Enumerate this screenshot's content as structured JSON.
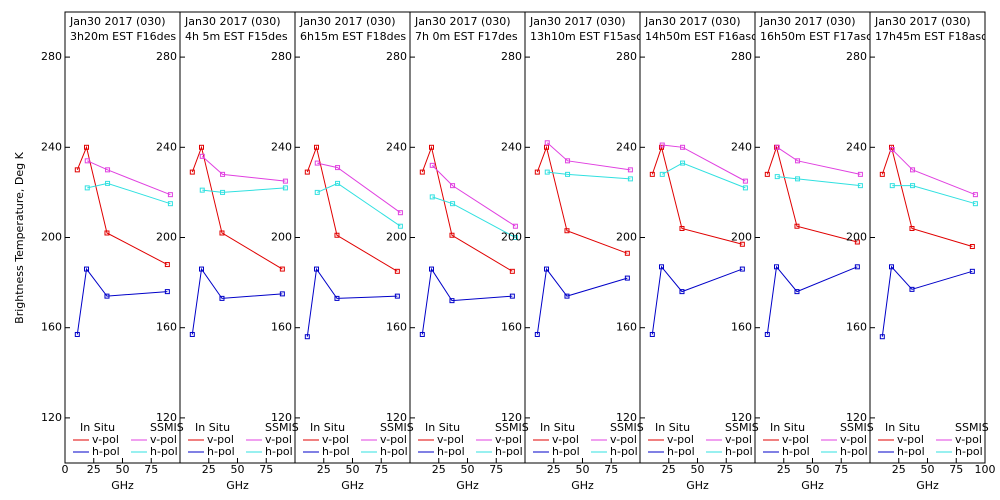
{
  "chart_data": [
    {
      "type": "line",
      "title": "Jan30 2017 (030)",
      "subtitle": "3h20m EST F16des",
      "ylabel": "Brightness Temperature, Deg K",
      "xlabel": "GHz",
      "xlim": [
        0,
        100
      ],
      "xticks": [
        0,
        25,
        50,
        75
      ],
      "ylim": [
        100,
        300
      ],
      "yticks": [
        120,
        160,
        200,
        240,
        280
      ],
      "legend_groups": [
        "In Situ",
        "SSMIS"
      ],
      "series": [
        {
          "name": "v-pol",
          "color": "#e00000",
          "x": [
            10.7,
            18.7,
            36.5,
            89
          ],
          "values": [
            230,
            240,
            202,
            188
          ]
        },
        {
          "name": "h-pol",
          "color": "#0000c8",
          "x": [
            10.7,
            18.7,
            36.5,
            89
          ],
          "values": [
            157,
            186,
            174,
            176
          ]
        },
        {
          "name": "v-pol",
          "color": "#e040e0",
          "x": [
            19.35,
            37,
            91.65
          ],
          "values": [
            234,
            230,
            219
          ]
        },
        {
          "name": "h-pol",
          "color": "#30e0e0",
          "x": [
            19.35,
            37,
            91.65
          ],
          "values": [
            222,
            224,
            215
          ]
        }
      ]
    },
    {
      "type": "line",
      "title": "Jan30 2017 (030)",
      "subtitle": "4h 5m EST F15des",
      "xlabel": "GHz",
      "xlim": [
        0,
        100
      ],
      "xticks": [
        25,
        50,
        75
      ],
      "ylim": [
        100,
        300
      ],
      "yticks": [
        120,
        160,
        200,
        240,
        280
      ],
      "legend_groups": [
        "In Situ",
        "SSMIS"
      ],
      "series": [
        {
          "name": "v-pol",
          "color": "#e00000",
          "x": [
            10.7,
            18.7,
            36.5,
            89
          ],
          "values": [
            229,
            240,
            202,
            186
          ]
        },
        {
          "name": "h-pol",
          "color": "#0000c8",
          "x": [
            10.7,
            18.7,
            36.5,
            89
          ],
          "values": [
            157,
            186,
            173,
            175
          ]
        },
        {
          "name": "v-pol",
          "color": "#e040e0",
          "x": [
            19.35,
            37,
            91.65
          ],
          "values": [
            236,
            228,
            225
          ]
        },
        {
          "name": "h-pol",
          "color": "#30e0e0",
          "x": [
            19.35,
            37,
            91.65
          ],
          "values": [
            221,
            220,
            222
          ]
        }
      ]
    },
    {
      "type": "line",
      "title": "Jan30 2017 (030)",
      "subtitle": "6h15m EST F18des",
      "xlabel": "GHz",
      "xlim": [
        0,
        100
      ],
      "xticks": [
        25,
        50,
        75
      ],
      "ylim": [
        100,
        300
      ],
      "yticks": [
        120,
        160,
        200,
        240,
        280
      ],
      "legend_groups": [
        "In Situ",
        "SSMIS"
      ],
      "series": [
        {
          "name": "v-pol",
          "color": "#e00000",
          "x": [
            10.7,
            18.7,
            36.5,
            89
          ],
          "values": [
            229,
            240,
            201,
            185
          ]
        },
        {
          "name": "h-pol",
          "color": "#0000c8",
          "x": [
            10.7,
            18.7,
            36.5,
            89
          ],
          "values": [
            156,
            186,
            173,
            174
          ]
        },
        {
          "name": "v-pol",
          "color": "#e040e0",
          "x": [
            19.35,
            37,
            91.65
          ],
          "values": [
            233,
            231,
            211
          ]
        },
        {
          "name": "h-pol",
          "color": "#30e0e0",
          "x": [
            19.35,
            37,
            91.65
          ],
          "values": [
            220,
            224,
            205
          ]
        }
      ]
    },
    {
      "type": "line",
      "title": "Jan30 2017 (030)",
      "subtitle": "7h 0m EST F17des",
      "xlabel": "GHz",
      "xlim": [
        0,
        100
      ],
      "xticks": [
        25,
        50,
        75
      ],
      "ylim": [
        100,
        300
      ],
      "yticks": [
        120,
        160,
        200,
        240,
        280
      ],
      "legend_groups": [
        "In Situ",
        "SSMIS"
      ],
      "series": [
        {
          "name": "v-pol",
          "color": "#e00000",
          "x": [
            10.7,
            18.7,
            36.5,
            89
          ],
          "values": [
            229,
            240,
            201,
            185
          ]
        },
        {
          "name": "h-pol",
          "color": "#0000c8",
          "x": [
            10.7,
            18.7,
            36.5,
            89
          ],
          "values": [
            157,
            186,
            172,
            174
          ]
        },
        {
          "name": "v-pol",
          "color": "#e040e0",
          "x": [
            19.35,
            37,
            91.65
          ],
          "values": [
            232,
            223,
            205
          ]
        },
        {
          "name": "h-pol",
          "color": "#30e0e0",
          "x": [
            19.35,
            37,
            91.65
          ],
          "values": [
            218,
            215,
            200
          ]
        }
      ]
    },
    {
      "type": "line",
      "title": "Jan30 2017 (030)",
      "subtitle": "13h10m EST F15asc",
      "xlabel": "GHz",
      "xlim": [
        0,
        100
      ],
      "xticks": [
        25,
        50,
        75
      ],
      "ylim": [
        100,
        300
      ],
      "yticks": [
        120,
        160,
        200,
        240,
        280
      ],
      "legend_groups": [
        "In Situ",
        "SSMIS"
      ],
      "series": [
        {
          "name": "v-pol",
          "color": "#e00000",
          "x": [
            10.7,
            18.7,
            36.5,
            89
          ],
          "values": [
            229,
            240,
            203,
            193
          ]
        },
        {
          "name": "h-pol",
          "color": "#0000c8",
          "x": [
            10.7,
            18.7,
            36.5,
            89
          ],
          "values": [
            157,
            186,
            174,
            182
          ]
        },
        {
          "name": "v-pol",
          "color": "#e040e0",
          "x": [
            19.35,
            37,
            91.65
          ],
          "values": [
            242,
            234,
            230
          ]
        },
        {
          "name": "h-pol",
          "color": "#30e0e0",
          "x": [
            19.35,
            37,
            91.65
          ],
          "values": [
            229,
            228,
            226
          ]
        }
      ]
    },
    {
      "type": "line",
      "title": "Jan30 2017 (030)",
      "subtitle": "14h50m EST F16asc",
      "xlabel": "GHz",
      "xlim": [
        0,
        100
      ],
      "xticks": [
        25,
        50,
        75
      ],
      "ylim": [
        100,
        300
      ],
      "yticks": [
        120,
        160,
        200,
        240,
        280
      ],
      "legend_groups": [
        "In Situ",
        "SSMIS"
      ],
      "series": [
        {
          "name": "v-pol",
          "color": "#e00000",
          "x": [
            10.7,
            18.7,
            36.5,
            89
          ],
          "values": [
            228,
            240,
            204,
            197
          ]
        },
        {
          "name": "h-pol",
          "color": "#0000c8",
          "x": [
            10.7,
            18.7,
            36.5,
            89
          ],
          "values": [
            157,
            187,
            176,
            186
          ]
        },
        {
          "name": "v-pol",
          "color": "#e040e0",
          "x": [
            19.35,
            37,
            91.65
          ],
          "values": [
            241,
            240,
            225
          ]
        },
        {
          "name": "h-pol",
          "color": "#30e0e0",
          "x": [
            19.35,
            37,
            91.65
          ],
          "values": [
            228,
            233,
            222
          ]
        }
      ]
    },
    {
      "type": "line",
      "title": "Jan30 2017 (030)",
      "subtitle": "16h50m EST F17asc",
      "xlabel": "GHz",
      "xlim": [
        0,
        100
      ],
      "xticks": [
        25,
        50,
        75
      ],
      "ylim": [
        100,
        300
      ],
      "yticks": [
        120,
        160,
        200,
        240,
        280
      ],
      "legend_groups": [
        "In Situ",
        "SSMIS"
      ],
      "series": [
        {
          "name": "v-pol",
          "color": "#e00000",
          "x": [
            10.7,
            18.7,
            36.5,
            89
          ],
          "values": [
            228,
            240,
            205,
            198
          ]
        },
        {
          "name": "h-pol",
          "color": "#0000c8",
          "x": [
            10.7,
            18.7,
            36.5,
            89
          ],
          "values": [
            157,
            187,
            176,
            187
          ]
        },
        {
          "name": "v-pol",
          "color": "#e040e0",
          "x": [
            19.35,
            37,
            91.65
          ],
          "values": [
            240,
            234,
            228
          ]
        },
        {
          "name": "h-pol",
          "color": "#30e0e0",
          "x": [
            19.35,
            37,
            91.65
          ],
          "values": [
            227,
            226,
            223
          ]
        }
      ]
    },
    {
      "type": "line",
      "title": "Jan30 2017 (030)",
      "subtitle": "17h45m EST F18asc",
      "xlabel": "GHz",
      "xlim": [
        0,
        100
      ],
      "xticks": [
        25,
        50,
        75,
        100
      ],
      "ylim": [
        100,
        300
      ],
      "yticks": [
        120,
        160,
        200,
        240,
        280
      ],
      "legend_groups": [
        "In Situ",
        "SSMIS"
      ],
      "series": [
        {
          "name": "v-pol",
          "color": "#e00000",
          "x": [
            10.7,
            18.7,
            36.5,
            89
          ],
          "values": [
            228,
            240,
            204,
            196
          ]
        },
        {
          "name": "h-pol",
          "color": "#0000c8",
          "x": [
            10.7,
            18.7,
            36.5,
            89
          ],
          "values": [
            156,
            187,
            177,
            185
          ]
        },
        {
          "name": "v-pol",
          "color": "#e040e0",
          "x": [
            19.35,
            37,
            91.65
          ],
          "values": [
            239,
            230,
            219
          ]
        },
        {
          "name": "h-pol",
          "color": "#30e0e0",
          "x": [
            19.35,
            37,
            91.65
          ],
          "values": [
            223,
            223,
            215
          ]
        }
      ]
    }
  ]
}
